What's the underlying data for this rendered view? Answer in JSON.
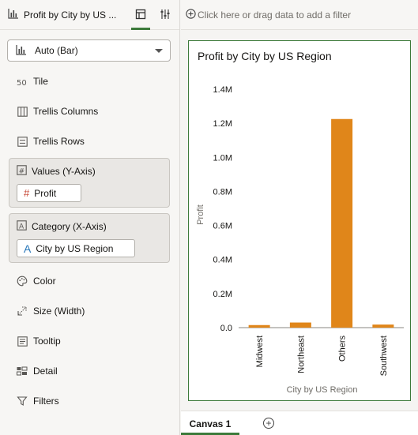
{
  "panel": {
    "title": "Profit by City by US ...",
    "chart_type": "Auto (Bar)",
    "grammar_rows": [
      {
        "name": "tile",
        "label": "Tile",
        "icon": "tile-icon"
      },
      {
        "name": "trellis-columns",
        "label": "Trellis Columns",
        "icon": "columns-icon"
      },
      {
        "name": "trellis-rows",
        "label": "Trellis Rows",
        "icon": "rows-icon"
      }
    ],
    "values_section": {
      "label": "Values (Y-Axis)",
      "pill": "Profit"
    },
    "category_section": {
      "label": "Category (X-Axis)",
      "pill": "City by US Region"
    },
    "extra_rows": [
      {
        "name": "color",
        "label": "Color",
        "icon": "palette-icon"
      },
      {
        "name": "size",
        "label": "Size (Width)",
        "icon": "size-icon"
      },
      {
        "name": "tooltip",
        "label": "Tooltip",
        "icon": "tooltip-icon"
      },
      {
        "name": "detail",
        "label": "Detail",
        "icon": "detail-icon"
      },
      {
        "name": "filters",
        "label": "Filters",
        "icon": "funnel-icon"
      }
    ]
  },
  "filter_bar": {
    "placeholder": "Click here or drag data to add a filter"
  },
  "canvas_tabs": [
    {
      "label": "Canvas 1",
      "active": true
    }
  ],
  "colors": {
    "bar": "#e0861a",
    "accent": "#3c7a3a"
  },
  "chart_data": {
    "type": "bar",
    "title": "Profit by City by US Region",
    "xlabel": "City by US Region",
    "ylabel": "Profit",
    "categories": [
      "Midwest",
      "Northeast",
      "Others",
      "Southwest"
    ],
    "values": [
      15000,
      30000,
      1225000,
      18000
    ],
    "ylim": [
      0,
      1400000
    ],
    "yticks": [
      0,
      200000,
      400000,
      600000,
      800000,
      1000000,
      1200000,
      1400000
    ],
    "ytick_labels": [
      "0.0",
      "0.2M",
      "0.4M",
      "0.6M",
      "0.8M",
      "1.0M",
      "1.2M",
      "1.4M"
    ]
  }
}
